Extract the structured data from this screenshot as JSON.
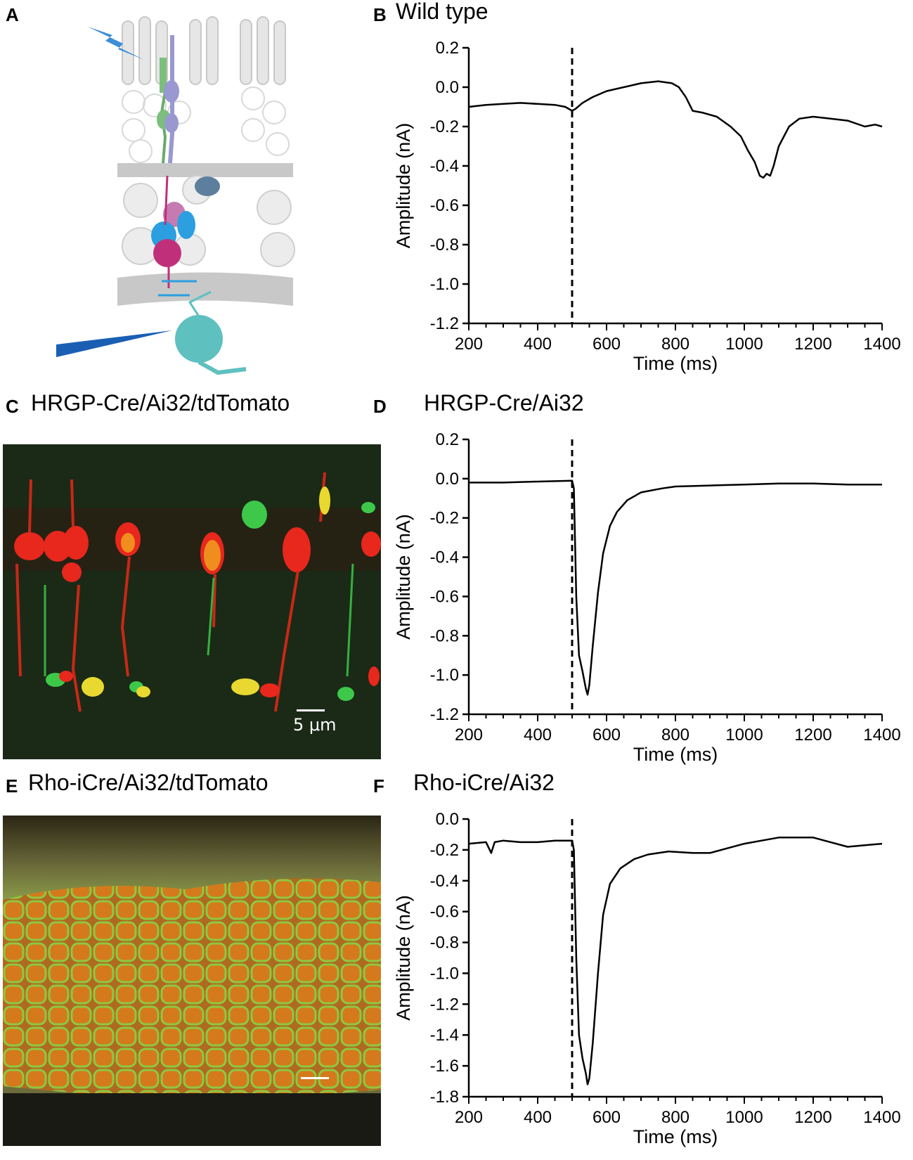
{
  "panels": {
    "A": {
      "letter": "A"
    },
    "B": {
      "letter": "B",
      "title": "Wild type"
    },
    "C": {
      "letter": "C",
      "title": "HRGP-Cre/Ai32/tdTomato",
      "scalebar": "5 μm"
    },
    "D": {
      "letter": "D",
      "title": "HRGP-Cre/Ai32"
    },
    "E": {
      "letter": "E",
      "title": "Rho-iCre/Ai32/tdTomato"
    },
    "F": {
      "letter": "F",
      "title": "Rho-iCre/Ai32"
    }
  },
  "colors": {
    "trace": "#000000",
    "axis": "#000000"
  },
  "chart_data": [
    {
      "id": "B",
      "type": "line",
      "xlabel": "Time (ms)",
      "ylabel": "Amplitude (nA)",
      "xlim": [
        200,
        1400
      ],
      "ylim": [
        -1.2,
        0.2
      ],
      "xticks": [
        200,
        400,
        600,
        800,
        1000,
        1200,
        1400
      ],
      "yticks": [
        0.2,
        0.0,
        -0.2,
        -0.4,
        -0.6,
        -0.8,
        -1.0,
        -1.2
      ],
      "ytick_labels": [
        "0.2",
        "0.0",
        "-0.2",
        "-0.4",
        "-0.6",
        "-0.8",
        "-1.0",
        "-1.2"
      ],
      "stimulus_marker_x": 500,
      "series": [
        {
          "x": [
            200,
            250,
            300,
            350,
            400,
            450,
            480,
            500,
            510,
            530,
            560,
            600,
            650,
            700,
            750,
            790,
            810,
            830,
            850,
            880,
            920,
            960,
            990,
            1010,
            1030,
            1045,
            1055,
            1065,
            1075,
            1085,
            1100,
            1130,
            1160,
            1200,
            1250,
            1300,
            1350,
            1380,
            1400
          ],
          "y": [
            -0.1,
            -0.09,
            -0.085,
            -0.08,
            -0.085,
            -0.09,
            -0.1,
            -0.12,
            -0.11,
            -0.08,
            -0.05,
            -0.02,
            0.0,
            0.02,
            0.03,
            0.02,
            0.0,
            -0.05,
            -0.12,
            -0.13,
            -0.15,
            -0.2,
            -0.25,
            -0.32,
            -0.38,
            -0.45,
            -0.46,
            -0.44,
            -0.45,
            -0.4,
            -0.3,
            -0.2,
            -0.16,
            -0.15,
            -0.16,
            -0.17,
            -0.2,
            -0.19,
            -0.2
          ]
        }
      ]
    },
    {
      "id": "D",
      "type": "line",
      "xlabel": "Time (ms)",
      "ylabel": "Amplitude (nA)",
      "xlim": [
        200,
        1400
      ],
      "ylim": [
        -1.2,
        0.2
      ],
      "xticks": [
        200,
        400,
        600,
        800,
        1000,
        1200,
        1400
      ],
      "yticks": [
        0.2,
        0.0,
        -0.2,
        -0.4,
        -0.6,
        -0.8,
        -1.0,
        -1.2
      ],
      "ytick_labels": [
        "0.2",
        "0.0",
        "-0.2",
        "-0.4",
        "-0.6",
        "-0.8",
        "-1.0",
        "-1.2"
      ],
      "stimulus_marker_x": 500,
      "series": [
        {
          "x": [
            200,
            300,
            400,
            500,
            505,
            512,
            520,
            530,
            540,
            545,
            550,
            560,
            575,
            590,
            610,
            630,
            660,
            700,
            760,
            800,
            900,
            1000,
            1100,
            1200,
            1300,
            1400
          ],
          "y": [
            -0.02,
            -0.02,
            -0.015,
            -0.01,
            -0.05,
            -0.6,
            -0.9,
            -0.98,
            -1.07,
            -1.1,
            -1.05,
            -0.85,
            -0.58,
            -0.38,
            -0.24,
            -0.17,
            -0.11,
            -0.07,
            -0.05,
            -0.04,
            -0.035,
            -0.03,
            -0.025,
            -0.025,
            -0.03,
            -0.03
          ]
        }
      ]
    },
    {
      "id": "F",
      "type": "line",
      "xlabel": "Time (ms)",
      "ylabel": "Amplitude (nA)",
      "xlim": [
        200,
        1400
      ],
      "ylim": [
        -1.8,
        0.0
      ],
      "xticks": [
        200,
        400,
        600,
        800,
        1000,
        1200,
        1400
      ],
      "yticks": [
        0.0,
        -0.2,
        -0.4,
        -0.6,
        -0.8,
        -1.0,
        -1.2,
        -1.4,
        -1.6,
        -1.8
      ],
      "ytick_labels": [
        "0.0",
        "-0.2",
        "-0.4",
        "-0.6",
        "-0.8",
        "-1.0",
        "-1.2",
        "-1.4",
        "-1.6",
        "-1.8"
      ],
      "stimulus_marker_x": 500,
      "series": [
        {
          "x": [
            200,
            250,
            265,
            275,
            300,
            350,
            400,
            450,
            500,
            505,
            512,
            520,
            530,
            540,
            545,
            550,
            560,
            575,
            590,
            610,
            640,
            680,
            720,
            780,
            850,
            900,
            950,
            1000,
            1050,
            1100,
            1150,
            1200,
            1250,
            1300,
            1350,
            1400
          ],
          "y": [
            -0.16,
            -0.15,
            -0.22,
            -0.15,
            -0.14,
            -0.15,
            -0.15,
            -0.14,
            -0.14,
            -0.2,
            -0.9,
            -1.4,
            -1.55,
            -1.65,
            -1.72,
            -1.68,
            -1.45,
            -1.0,
            -0.62,
            -0.42,
            -0.32,
            -0.26,
            -0.23,
            -0.21,
            -0.22,
            -0.22,
            -0.19,
            -0.16,
            -0.14,
            -0.12,
            -0.12,
            -0.12,
            -0.15,
            -0.18,
            -0.17,
            -0.16
          ]
        }
      ]
    }
  ]
}
